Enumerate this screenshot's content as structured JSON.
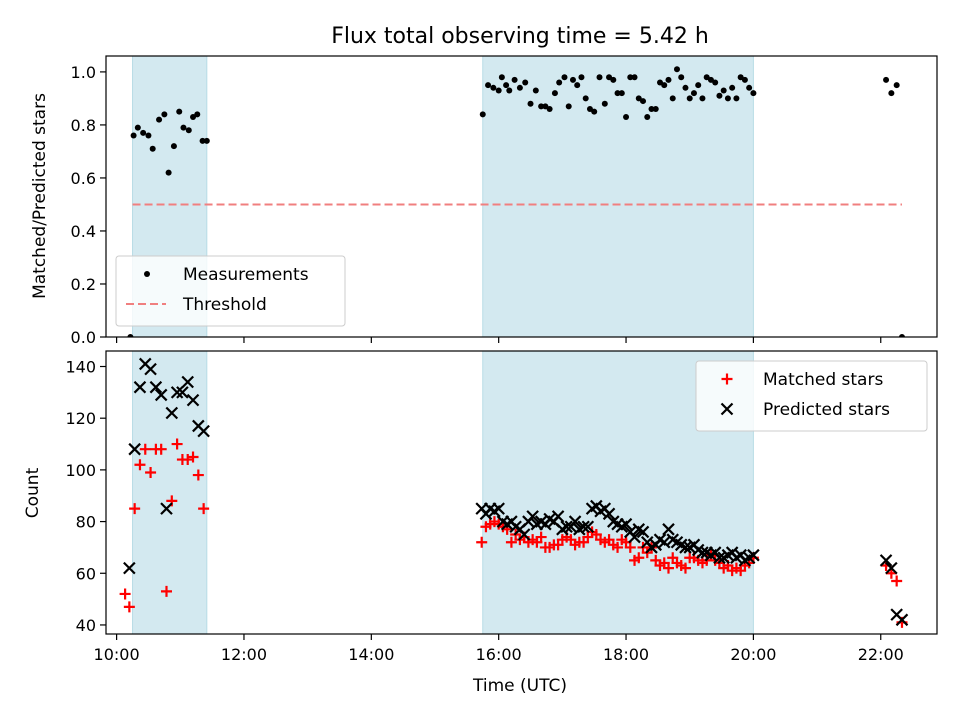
{
  "chart_data": [
    {
      "type": "scatter",
      "title": "Flux total observing time = 5.42 h",
      "xlabel": "",
      "ylabel": "Matched/Predicted stars",
      "xlim": [
        "09:50",
        "22:53"
      ],
      "ylim": [
        0,
        1.06
      ],
      "yticks": [
        "0.0",
        "0.2",
        "0.4",
        "0.6",
        "0.8",
        "1.0"
      ],
      "shaded_intervals": [
        [
          "10:15",
          "11:25"
        ],
        [
          "15:45",
          "20:00"
        ]
      ],
      "threshold": {
        "name": "Threshold",
        "value": 0.5,
        "x_from": "10:15",
        "x_to": "22:20",
        "color": "#f07f7f"
      },
      "legend_position": "lower-left",
      "series": [
        {
          "name": "Measurements",
          "color": "#000000",
          "marker": "dot",
          "x": [
            "10:13",
            "10:16",
            "10:20",
            "10:25",
            "10:30",
            "10:34",
            "10:40",
            "10:45",
            "10:49",
            "10:54",
            "10:59",
            "11:03",
            "11:08",
            "11:12",
            "11:16",
            "11:21",
            "11:25",
            "15:45",
            "15:50",
            "15:55",
            "16:00",
            "16:03",
            "16:07",
            "16:10",
            "16:15",
            "16:20",
            "16:25",
            "16:30",
            "16:35",
            "16:40",
            "16:44",
            "16:48",
            "16:53",
            "16:57",
            "17:02",
            "17:06",
            "17:10",
            "17:14",
            "17:18",
            "17:22",
            "17:26",
            "17:30",
            "17:35",
            "17:40",
            "17:44",
            "17:48",
            "17:52",
            "17:56",
            "18:00",
            "18:04",
            "18:08",
            "18:12",
            "18:16",
            "18:20",
            "18:24",
            "18:28",
            "18:32",
            "18:36",
            "18:40",
            "18:44",
            "18:48",
            "18:52",
            "18:56",
            "19:00",
            "19:04",
            "19:08",
            "19:12",
            "19:16",
            "19:20",
            "19:24",
            "19:28",
            "19:32",
            "19:36",
            "19:40",
            "19:44",
            "19:48",
            "19:52",
            "19:56",
            "20:00",
            "22:05",
            "22:10",
            "22:15",
            "22:20"
          ],
          "y": [
            0.0,
            0.76,
            0.79,
            0.77,
            0.76,
            0.71,
            0.82,
            0.84,
            0.62,
            0.72,
            0.85,
            0.79,
            0.78,
            0.83,
            0.84,
            0.74,
            0.74,
            0.84,
            0.95,
            0.94,
            0.93,
            0.98,
            0.95,
            0.93,
            0.97,
            0.94,
            0.96,
            0.88,
            0.93,
            0.87,
            0.87,
            0.86,
            0.92,
            0.96,
            0.98,
            0.87,
            0.97,
            0.95,
            0.98,
            0.9,
            0.86,
            0.85,
            0.98,
            0.88,
            0.98,
            0.97,
            0.92,
            0.92,
            0.83,
            0.98,
            0.98,
            0.9,
            0.89,
            0.83,
            0.86,
            0.86,
            0.96,
            0.95,
            0.97,
            0.9,
            1.01,
            0.98,
            0.94,
            0.9,
            0.92,
            0.95,
            0.9,
            0.98,
            0.97,
            0.96,
            0.91,
            0.93,
            0.9,
            0.94,
            0.9,
            0.98,
            0.97,
            0.94,
            0.92,
            0.97,
            0.92,
            0.95,
            0.0
          ]
        }
      ]
    },
    {
      "type": "scatter",
      "title": "",
      "xlabel": "Time (UTC)",
      "ylabel": "Count",
      "xlim": [
        "09:50",
        "22:53"
      ],
      "ylim": [
        36.5,
        146
      ],
      "xticks": [
        "10:00",
        "12:00",
        "14:00",
        "16:00",
        "18:00",
        "20:00",
        "22:00"
      ],
      "yticks": [
        "40",
        "60",
        "80",
        "100",
        "120",
        "140"
      ],
      "shaded_intervals": [
        [
          "10:15",
          "11:25"
        ],
        [
          "15:45",
          "20:00"
        ]
      ],
      "legend_position": "upper-right",
      "series": [
        {
          "name": "Matched stars",
          "color": "#ff0000",
          "marker": "plus",
          "x": [
            "10:08",
            "10:12",
            "10:17",
            "10:22",
            "10:27",
            "10:32",
            "10:37",
            "10:42",
            "10:47",
            "10:52",
            "10:57",
            "11:02",
            "11:07",
            "11:12",
            "11:17",
            "11:22",
            "15:44",
            "15:48",
            "15:52",
            "15:56",
            "16:00",
            "16:04",
            "16:08",
            "16:12",
            "16:16",
            "16:20",
            "16:24",
            "16:28",
            "16:32",
            "16:36",
            "16:40",
            "16:44",
            "16:48",
            "16:52",
            "16:56",
            "17:00",
            "17:04",
            "17:08",
            "17:12",
            "17:16",
            "17:20",
            "17:24",
            "17:28",
            "17:32",
            "17:36",
            "17:40",
            "17:44",
            "17:48",
            "17:52",
            "17:56",
            "18:00",
            "18:04",
            "18:08",
            "18:12",
            "18:16",
            "18:20",
            "18:24",
            "18:28",
            "18:32",
            "18:36",
            "18:40",
            "18:44",
            "18:48",
            "18:52",
            "18:56",
            "19:00",
            "19:04",
            "19:08",
            "19:12",
            "19:16",
            "19:20",
            "19:24",
            "19:28",
            "19:32",
            "19:36",
            "19:40",
            "19:44",
            "19:48",
            "19:52",
            "19:56",
            "20:00",
            "22:05",
            "22:10",
            "22:15",
            "22:20"
          ],
          "y": [
            52,
            47,
            85,
            102,
            108,
            99,
            108,
            108,
            53,
            88,
            110,
            104,
            104,
            105,
            98,
            85,
            72,
            78,
            79,
            80,
            79,
            78,
            77,
            72,
            75,
            73,
            74,
            72,
            73,
            72,
            74,
            70,
            70,
            71,
            71,
            73,
            74,
            73,
            71,
            72,
            72,
            74,
            76,
            75,
            73,
            72,
            73,
            71,
            70,
            73,
            72,
            70,
            65,
            66,
            70,
            68,
            70,
            65,
            63,
            64,
            62,
            66,
            64,
            63,
            62,
            66,
            66,
            65,
            64,
            65,
            67,
            65,
            64,
            62,
            63,
            61,
            62,
            61,
            63,
            64,
            66,
            63,
            60,
            57,
            41
          ]
        },
        {
          "name": "Predicted stars",
          "color": "#000000",
          "marker": "x",
          "x": [
            "10:12",
            "10:17",
            "10:22",
            "10:27",
            "10:32",
            "10:37",
            "10:42",
            "10:47",
            "10:52",
            "10:57",
            "11:02",
            "11:07",
            "11:12",
            "11:17",
            "11:22",
            "15:44",
            "15:48",
            "15:52",
            "15:56",
            "16:00",
            "16:04",
            "16:08",
            "16:12",
            "16:16",
            "16:20",
            "16:24",
            "16:28",
            "16:32",
            "16:36",
            "16:40",
            "16:44",
            "16:48",
            "16:52",
            "16:56",
            "17:00",
            "17:04",
            "17:08",
            "17:12",
            "17:16",
            "17:20",
            "17:24",
            "17:28",
            "17:32",
            "17:36",
            "17:40",
            "17:44",
            "17:48",
            "17:52",
            "17:56",
            "18:00",
            "18:04",
            "18:08",
            "18:12",
            "18:16",
            "18:20",
            "18:24",
            "18:28",
            "18:32",
            "18:36",
            "18:40",
            "18:44",
            "18:48",
            "18:52",
            "18:56",
            "19:00",
            "19:04",
            "19:08",
            "19:12",
            "19:16",
            "19:20",
            "19:24",
            "19:28",
            "19:32",
            "19:36",
            "19:40",
            "19:44",
            "19:48",
            "19:52",
            "19:56",
            "20:00",
            "22:05",
            "22:10",
            "22:15",
            "22:20"
          ],
          "y": [
            62,
            108,
            132,
            141,
            139,
            132,
            129,
            85,
            122,
            130,
            130,
            134,
            127,
            117,
            115,
            85,
            83,
            85,
            84,
            85,
            80,
            79,
            80,
            78,
            77,
            75,
            80,
            82,
            79,
            80,
            79,
            81,
            80,
            82,
            77,
            78,
            78,
            80,
            77,
            78,
            78,
            85,
            86,
            84,
            85,
            83,
            80,
            79,
            78,
            79,
            76,
            74,
            77,
            76,
            72,
            70,
            71,
            73,
            72,
            77,
            73,
            72,
            71,
            70,
            70,
            71,
            69,
            68,
            68,
            67,
            68,
            66,
            66,
            67,
            68,
            66,
            67,
            65,
            66,
            67,
            65,
            62,
            44,
            42
          ]
        }
      ]
    }
  ]
}
